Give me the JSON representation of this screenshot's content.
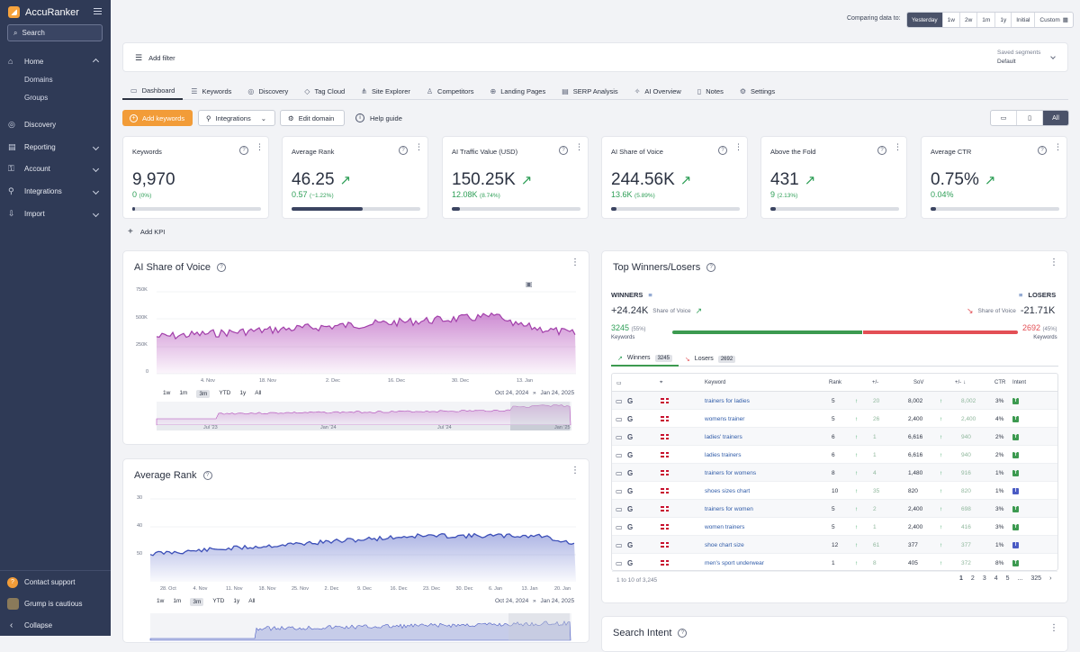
{
  "app": {
    "name": "AccuRanker"
  },
  "sidebar": {
    "search_label": "Search",
    "nav": [
      {
        "label": "Home",
        "icon": "home-icon"
      },
      {
        "label": "Discovery",
        "icon": "compass-icon"
      },
      {
        "label": "Reporting",
        "icon": "report-icon"
      },
      {
        "label": "Account",
        "icon": "key-icon"
      },
      {
        "label": "Integrations",
        "icon": "plug-icon"
      },
      {
        "label": "Import",
        "icon": "import-icon"
      }
    ],
    "home_sub": [
      "Domains",
      "Groups"
    ],
    "contact": "Contact support",
    "status": "Grump is cautious",
    "collapse": "Collapse"
  },
  "compare": {
    "label": "Comparing data to:",
    "options": [
      "Yesterday",
      "1w",
      "2w",
      "1m",
      "1y",
      "Initial",
      "Custom"
    ]
  },
  "filter": {
    "add": "Add filter",
    "saved_label": "Saved segments",
    "saved_value": "Default"
  },
  "tabs": [
    "Dashboard",
    "Keywords",
    "Discovery",
    "Tag Cloud",
    "Site Explorer",
    "Competitors",
    "Landing Pages",
    "SERP Analysis",
    "AI Overview",
    "Notes",
    "Settings"
  ],
  "actions": {
    "add_keywords": "Add keywords",
    "integrations": "Integrations",
    "edit_domain": "Edit domain",
    "help": "Help guide",
    "device_all": "All"
  },
  "kpis": [
    {
      "title": "Keywords",
      "value": "9,970",
      "delta": "0",
      "pct": "(0%)",
      "trend": false,
      "fill": 0.02
    },
    {
      "title": "Average Rank",
      "value": "46.25",
      "delta": "0.57",
      "pct": "(−1.22%)",
      "trend": true,
      "fill": 0.55
    },
    {
      "title": "AI Traffic Value (USD)",
      "value": "150.25K",
      "delta": "12.08K",
      "pct": "(8.74%)",
      "trend": true,
      "fill": 0.06
    },
    {
      "title": "AI Share of Voice",
      "value": "244.56K",
      "delta": "13.6K",
      "pct": "(5.89%)",
      "trend": true,
      "fill": 0.04
    },
    {
      "title": "Above the Fold",
      "value": "431",
      "delta": "9",
      "pct": "(2.13%)",
      "trend": true,
      "fill": 0.04
    },
    {
      "title": "Average CTR",
      "value": "0.75%",
      "delta": "0.04%",
      "pct": "",
      "trend": true,
      "fill": 0.04
    }
  ],
  "add_kpi": "Add KPI",
  "sov_card": {
    "title": "AI Share of Voice",
    "y_ticks": [
      "750K",
      "500K",
      "250K",
      "0"
    ],
    "x_ticks": [
      "4. Nov",
      "18. Nov",
      "2. Dec",
      "16. Dec",
      "30. Dec",
      "13. Jan"
    ],
    "ranges": [
      "1w",
      "1m",
      "3m",
      "YTD",
      "1y",
      "All"
    ],
    "active_range": "3m",
    "date_from": "Oct 24, 2024",
    "date_to": "Jan 24, 2025",
    "nav_ticks": [
      "Jul '23",
      "Jan '24",
      "Jul '24",
      "Jan '25"
    ]
  },
  "rank_card": {
    "title": "Average Rank",
    "y_ticks": [
      "30",
      "40",
      "50"
    ],
    "x_ticks": [
      "28. Oct",
      "4. Nov",
      "11. Nov",
      "18. Nov",
      "25. Nov",
      "2. Dec",
      "9. Dec",
      "16. Dec",
      "23. Dec",
      "30. Dec",
      "6. Jan",
      "13. Jan",
      "20. Jan"
    ],
    "ranges": [
      "1w",
      "1m",
      "3m",
      "YTD",
      "1y",
      "All"
    ],
    "active_range": "3m",
    "date_from": "Oct 24, 2024",
    "date_to": "Jan 24, 2025"
  },
  "winners": {
    "title": "Top Winners/Losers",
    "winners_label": "WINNERS",
    "losers_label": "LOSERS",
    "win_delta": "+24.24K",
    "lose_delta": "-21.71K",
    "sov_label": "Share of Voice",
    "win_count": "3245",
    "win_pct": "(55%)",
    "lose_count": "2692",
    "lose_pct": "(45%)",
    "keywords_label": "Keywords",
    "win_share": 0.55,
    "subtab_winners": "Winners",
    "subtab_losers": "Losers",
    "headers": {
      "keyword": "Keyword",
      "rank": "Rank",
      "rank_delta": "+/-",
      "sov": "SoV",
      "sov_delta": "+/-",
      "ctr": "CTR",
      "intent": "Intent"
    },
    "rows": [
      {
        "keyword": "trainers for ladies",
        "rank": "5",
        "rank_delta": "20",
        "sov": "8,002",
        "sov_delta": "8,002",
        "ctr": "3%",
        "intent": "T"
      },
      {
        "keyword": "womens trainer",
        "rank": "5",
        "rank_delta": "26",
        "sov": "2,400",
        "sov_delta": "2,400",
        "ctr": "4%",
        "intent": "T"
      },
      {
        "keyword": "ladies' trainers",
        "rank": "6",
        "rank_delta": "1",
        "sov": "6,616",
        "sov_delta": "940",
        "ctr": "2%",
        "intent": "T"
      },
      {
        "keyword": "ladies trainers",
        "rank": "6",
        "rank_delta": "1",
        "sov": "6,616",
        "sov_delta": "940",
        "ctr": "2%",
        "intent": "T"
      },
      {
        "keyword": "trainers for womens",
        "rank": "8",
        "rank_delta": "4",
        "sov": "1,480",
        "sov_delta": "916",
        "ctr": "1%",
        "intent": "T"
      },
      {
        "keyword": "shoes sizes chart",
        "rank": "10",
        "rank_delta": "35",
        "sov": "820",
        "sov_delta": "820",
        "ctr": "1%",
        "intent": "I"
      },
      {
        "keyword": "trainers for women",
        "rank": "5",
        "rank_delta": "2",
        "sov": "2,400",
        "sov_delta": "698",
        "ctr": "3%",
        "intent": "T"
      },
      {
        "keyword": "women trainers",
        "rank": "5",
        "rank_delta": "1",
        "sov": "2,400",
        "sov_delta": "416",
        "ctr": "3%",
        "intent": "T"
      },
      {
        "keyword": "shoe chart size",
        "rank": "12",
        "rank_delta": "61",
        "sov": "377",
        "sov_delta": "377",
        "ctr": "1%",
        "intent": "I"
      },
      {
        "keyword": "men's sport underwear",
        "rank": "1",
        "rank_delta": "8",
        "sov": "405",
        "sov_delta": "372",
        "ctr": "8%",
        "intent": "T"
      }
    ],
    "footer": "1 to 10 of 3,245",
    "pages": [
      "1",
      "2",
      "3",
      "4",
      "5",
      "...",
      "325"
    ]
  },
  "search_intent": {
    "title": "Search Intent"
  },
  "colors": {
    "sidebar": "#2f3a56",
    "accent": "#f29c38",
    "sov": "#b24dba",
    "rank": "#4a5bc4",
    "win": "#3c9a50",
    "lose": "#e34f55"
  }
}
